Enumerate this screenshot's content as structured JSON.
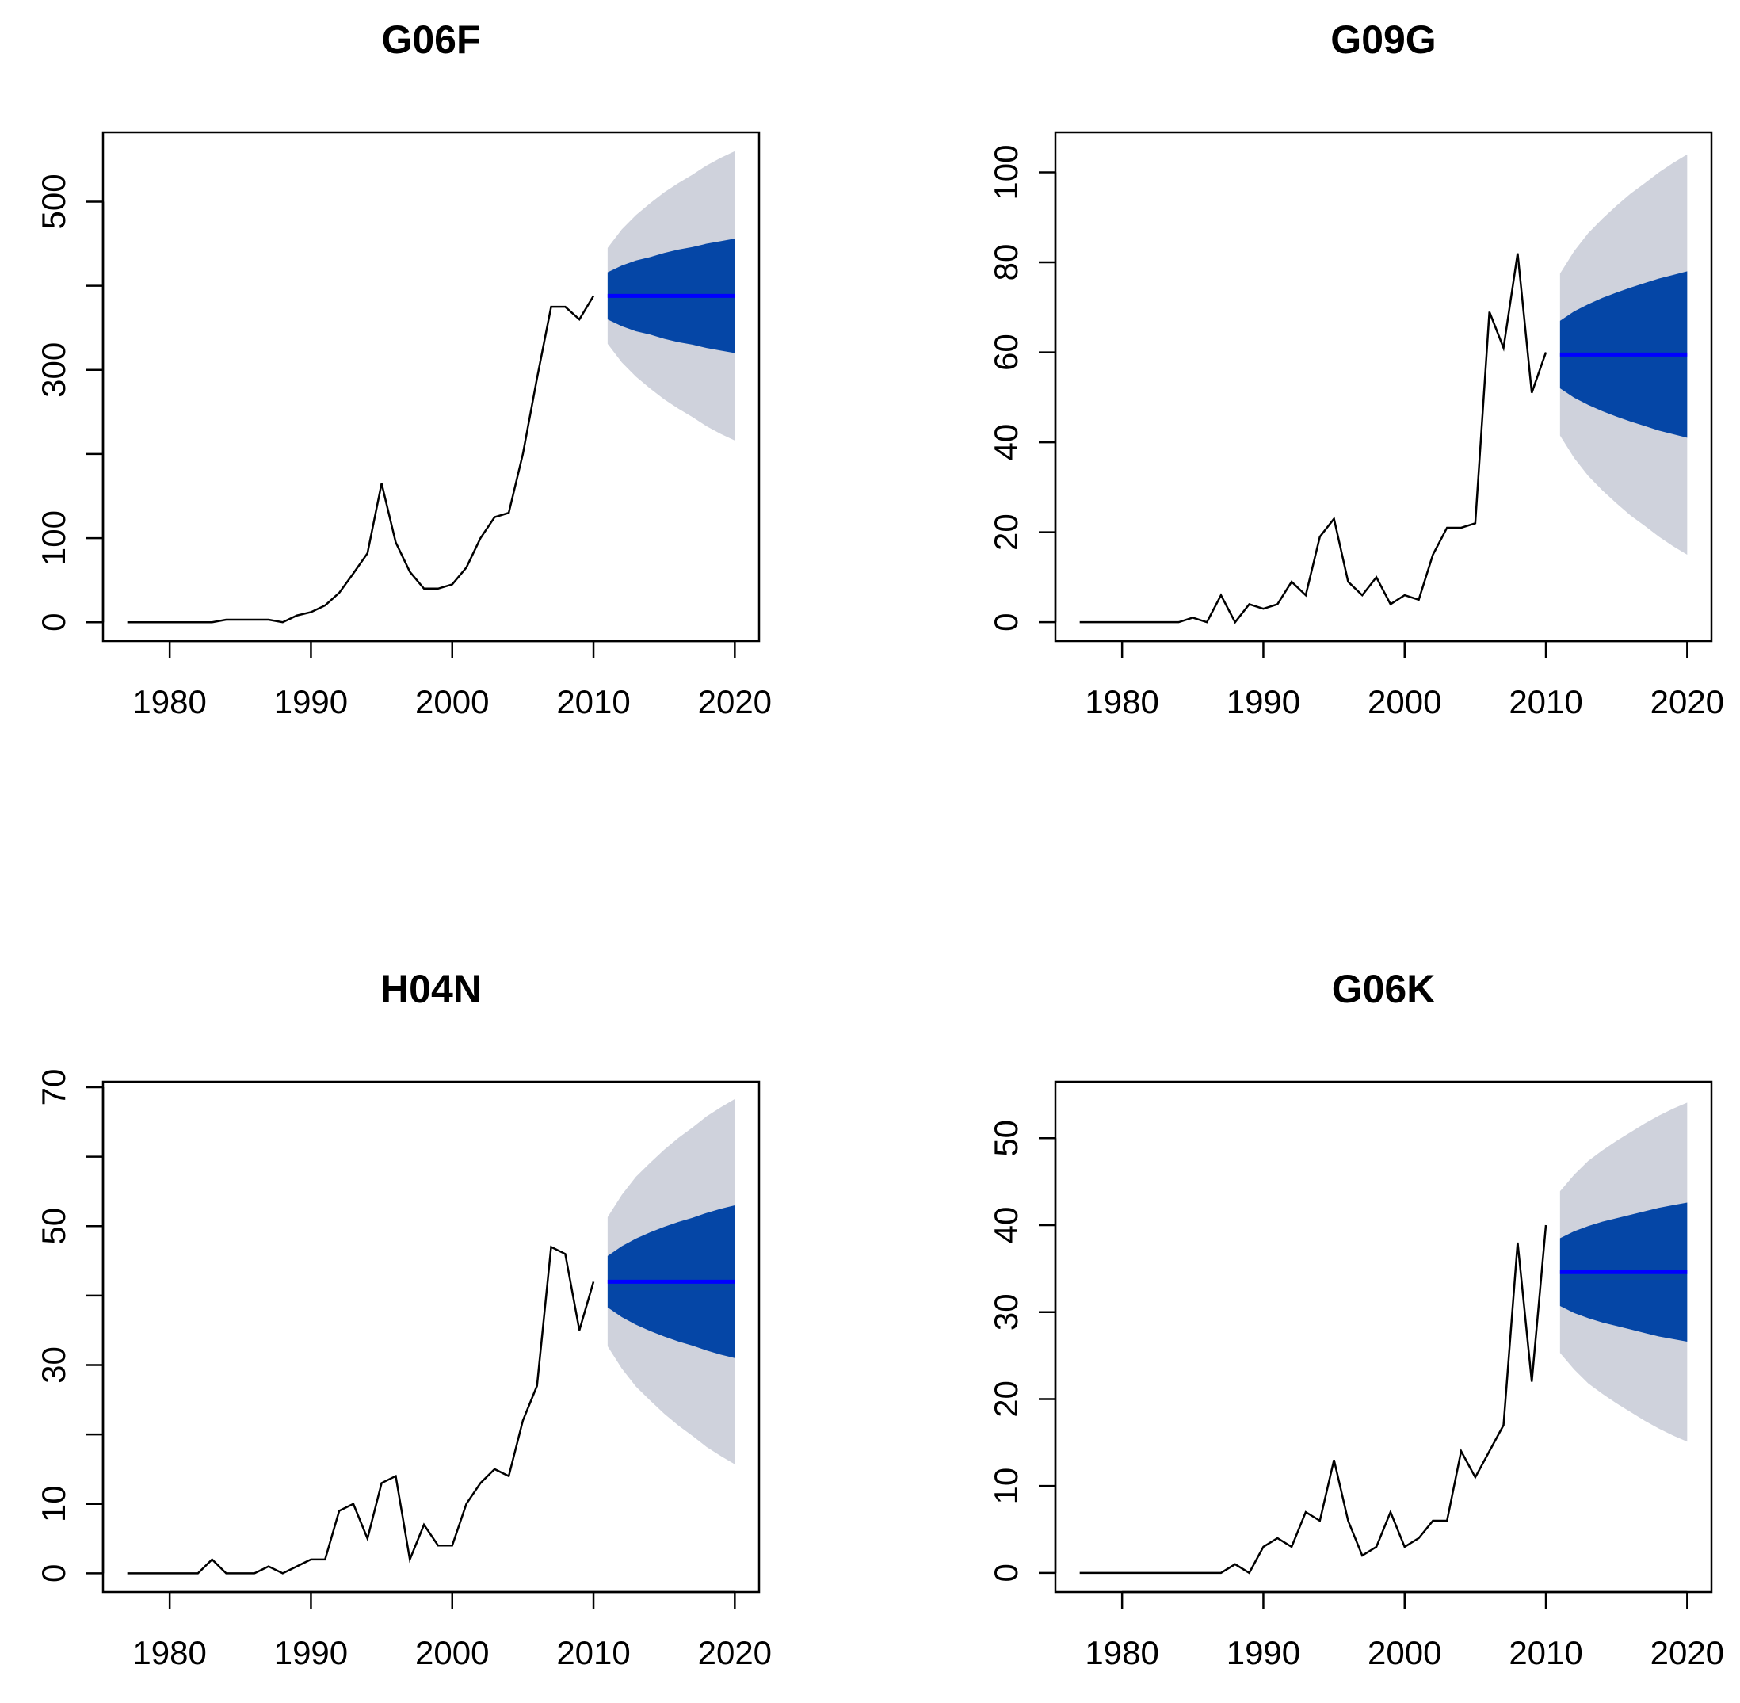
{
  "chart_data": [
    {
      "type": "forecast",
      "title": "G06F",
      "xlim": [
        1975.28,
        2021.72
      ],
      "ylim": [
        -22.4,
        582.4
      ],
      "xticks": [
        1980,
        1990,
        2000,
        2010,
        2020
      ],
      "yticks": [
        0,
        100,
        300,
        500
      ],
      "yticks_unlabeled": [
        200,
        400
      ],
      "history": {
        "color": "#000000",
        "x": [
          1977,
          1978,
          1979,
          1980,
          1981,
          1982,
          1983,
          1984,
          1985,
          1986,
          1987,
          1988,
          1989,
          1990,
          1991,
          1992,
          1993,
          1994,
          1995,
          1996,
          1997,
          1998,
          1999,
          2000,
          2001,
          2002,
          2003,
          2004,
          2005,
          2006,
          2007,
          2008,
          2009,
          2010
        ],
        "values": [
          0,
          0,
          0,
          0,
          0,
          0,
          0,
          3,
          3,
          3,
          3,
          0,
          8,
          12,
          20,
          35,
          58,
          82,
          165,
          95,
          60,
          40,
          40,
          45,
          65,
          100,
          125,
          130,
          200,
          290,
          375,
          375,
          360,
          388
        ]
      },
      "forecast": {
        "color_mean": "#0000ff",
        "color_80": "#0546a6",
        "color_95": "#cfd2dc",
        "x": [
          2011,
          2012,
          2013,
          2014,
          2015,
          2016,
          2017,
          2018,
          2019,
          2020
        ],
        "mean": [
          388,
          388,
          388,
          388,
          388,
          388,
          388,
          388,
          388,
          388
        ],
        "lo80": [
          360,
          352,
          346,
          342,
          337,
          333,
          330,
          326,
          323,
          320
        ],
        "hi80": [
          416,
          424,
          430,
          434,
          439,
          443,
          446,
          450,
          453,
          456
        ],
        "lo95": [
          331,
          309,
          292,
          278,
          265,
          254,
          244,
          233,
          224,
          216
        ],
        "hi95": [
          445,
          467,
          484,
          498,
          511,
          522,
          532,
          543,
          552,
          560
        ]
      }
    },
    {
      "type": "forecast",
      "title": "G09G",
      "xlim": [
        1975.28,
        2021.72
      ],
      "ylim": [
        -4.2,
        108.9
      ],
      "xticks": [
        1980,
        1990,
        2000,
        2010,
        2020
      ],
      "yticks": [
        0,
        20,
        40,
        60,
        80,
        100
      ],
      "yticks_unlabeled": [],
      "history": {
        "color": "#000000",
        "x": [
          1977,
          1978,
          1979,
          1980,
          1981,
          1982,
          1983,
          1984,
          1985,
          1986,
          1987,
          1988,
          1989,
          1990,
          1991,
          1992,
          1993,
          1994,
          1995,
          1996,
          1997,
          1998,
          1999,
          2000,
          2001,
          2002,
          2003,
          2004,
          2005,
          2006,
          2007,
          2008,
          2009,
          2010
        ],
        "values": [
          0,
          0,
          0,
          0,
          0,
          0,
          0,
          0,
          1,
          0,
          6,
          0,
          4,
          3,
          4,
          9,
          6,
          19,
          23,
          9,
          6,
          10,
          4,
          6,
          5,
          15,
          21,
          21,
          22,
          69,
          61,
          82,
          51,
          60
        ]
      },
      "forecast": {
        "color_mean": "#0000ff",
        "color_80": "#0546a6",
        "color_95": "#cfd2dc",
        "x": [
          2011,
          2012,
          2013,
          2014,
          2015,
          2016,
          2017,
          2018,
          2019,
          2020
        ],
        "mean": [
          59.5,
          59.5,
          59.5,
          59.5,
          59.5,
          59.5,
          59.5,
          59.5,
          59.5,
          59.5
        ],
        "lo80": [
          52,
          49.9,
          48.3,
          46.9,
          45.7,
          44.6,
          43.6,
          42.6,
          41.8,
          41
        ],
        "hi80": [
          67,
          69.1,
          70.7,
          72.1,
          73.3,
          74.4,
          75.4,
          76.4,
          77.2,
          78
        ],
        "lo95": [
          41.5,
          36.5,
          32.5,
          29.3,
          26.4,
          23.7,
          21.4,
          19,
          16.9,
          15
        ],
        "hi95": [
          77.5,
          82.5,
          86.5,
          89.7,
          92.6,
          95.3,
          97.6,
          100,
          102.1,
          104
        ]
      }
    },
    {
      "type": "forecast",
      "title": "H04N",
      "xlim": [
        1975.28,
        2021.72
      ],
      "ylim": [
        -2.7,
        70.8
      ],
      "xticks": [
        1980,
        1990,
        2000,
        2010,
        2020
      ],
      "yticks": [
        0,
        10,
        30,
        50,
        70
      ],
      "yticks_unlabeled": [
        20,
        40,
        60
      ],
      "history": {
        "color": "#000000",
        "x": [
          1977,
          1978,
          1979,
          1980,
          1981,
          1982,
          1983,
          1984,
          1985,
          1986,
          1987,
          1988,
          1989,
          1990,
          1991,
          1992,
          1993,
          1994,
          1995,
          1996,
          1997,
          1998,
          1999,
          2000,
          2001,
          2002,
          2003,
          2004,
          2005,
          2006,
          2007,
          2008,
          2009,
          2010
        ],
        "values": [
          0,
          0,
          0,
          0,
          0,
          0,
          2,
          0,
          0,
          0,
          1,
          0,
          1,
          2,
          2,
          9,
          10,
          5,
          13,
          14,
          2,
          7,
          4,
          4,
          10,
          13,
          15,
          14,
          22,
          27,
          47,
          46,
          35,
          42
        ]
      },
      "forecast": {
        "color_mean": "#0000ff",
        "color_80": "#0546a6",
        "color_95": "#cfd2dc",
        "x": [
          2011,
          2012,
          2013,
          2014,
          2015,
          2016,
          2017,
          2018,
          2019,
          2020
        ],
        "mean": [
          42,
          42,
          42,
          42,
          42,
          42,
          42,
          42,
          42,
          42
        ],
        "lo80": [
          38.3,
          36.9,
          35.8,
          34.9,
          34.1,
          33.4,
          32.8,
          32.1,
          31.5,
          31
        ],
        "hi80": [
          45.7,
          47.1,
          48.2,
          49.1,
          49.9,
          50.6,
          51.2,
          51.9,
          52.5,
          53
        ],
        "lo95": [
          32.7,
          29.5,
          26.9,
          24.9,
          23,
          21.3,
          19.8,
          18.2,
          16.9,
          15.7
        ],
        "hi95": [
          51.3,
          54.5,
          57.1,
          59.1,
          61,
          62.7,
          64.2,
          65.8,
          67.1,
          68.3
        ]
      }
    },
    {
      "type": "forecast",
      "title": "G06K",
      "xlim": [
        1975.28,
        2021.72
      ],
      "ylim": [
        -2.2,
        56.5
      ],
      "xticks": [
        1980,
        1990,
        2000,
        2010,
        2020
      ],
      "yticks": [
        0,
        10,
        20,
        30,
        40,
        50
      ],
      "yticks_unlabeled": [],
      "history": {
        "color": "#000000",
        "x": [
          1977,
          1978,
          1979,
          1980,
          1981,
          1982,
          1983,
          1984,
          1985,
          1986,
          1987,
          1988,
          1989,
          1990,
          1991,
          1992,
          1993,
          1994,
          1995,
          1996,
          1997,
          1998,
          1999,
          2000,
          2001,
          2002,
          2003,
          2004,
          2005,
          2006,
          2007,
          2008,
          2009,
          2010
        ],
        "values": [
          0,
          0,
          0,
          0,
          0,
          0,
          0,
          0,
          0,
          0,
          0,
          1,
          0,
          3,
          4,
          3,
          7,
          6,
          13,
          6,
          2,
          3,
          7,
          3,
          4,
          6,
          6,
          14,
          11,
          14,
          17,
          38,
          22,
          40
        ]
      },
      "forecast": {
        "color_mean": "#0000ff",
        "color_80": "#0546a6",
        "color_95": "#cfd2dc",
        "x": [
          2011,
          2012,
          2013,
          2014,
          2015,
          2016,
          2017,
          2018,
          2019,
          2020
        ],
        "mean": [
          34.6,
          34.6,
          34.6,
          34.6,
          34.6,
          34.6,
          34.6,
          34.6,
          34.6,
          34.6
        ],
        "lo80": [
          30.7,
          29.9,
          29.3,
          28.8,
          28.4,
          28,
          27.6,
          27.2,
          26.9,
          26.6
        ],
        "hi80": [
          38.5,
          39.3,
          39.9,
          40.4,
          40.8,
          41.2,
          41.6,
          42,
          42.3,
          42.6
        ],
        "lo95": [
          25.3,
          23.4,
          21.8,
          20.6,
          19.5,
          18.5,
          17.5,
          16.6,
          15.8,
          15.1
        ],
        "hi95": [
          43.9,
          45.8,
          47.4,
          48.6,
          49.7,
          50.7,
          51.7,
          52.6,
          53.4,
          54.1
        ]
      }
    }
  ]
}
